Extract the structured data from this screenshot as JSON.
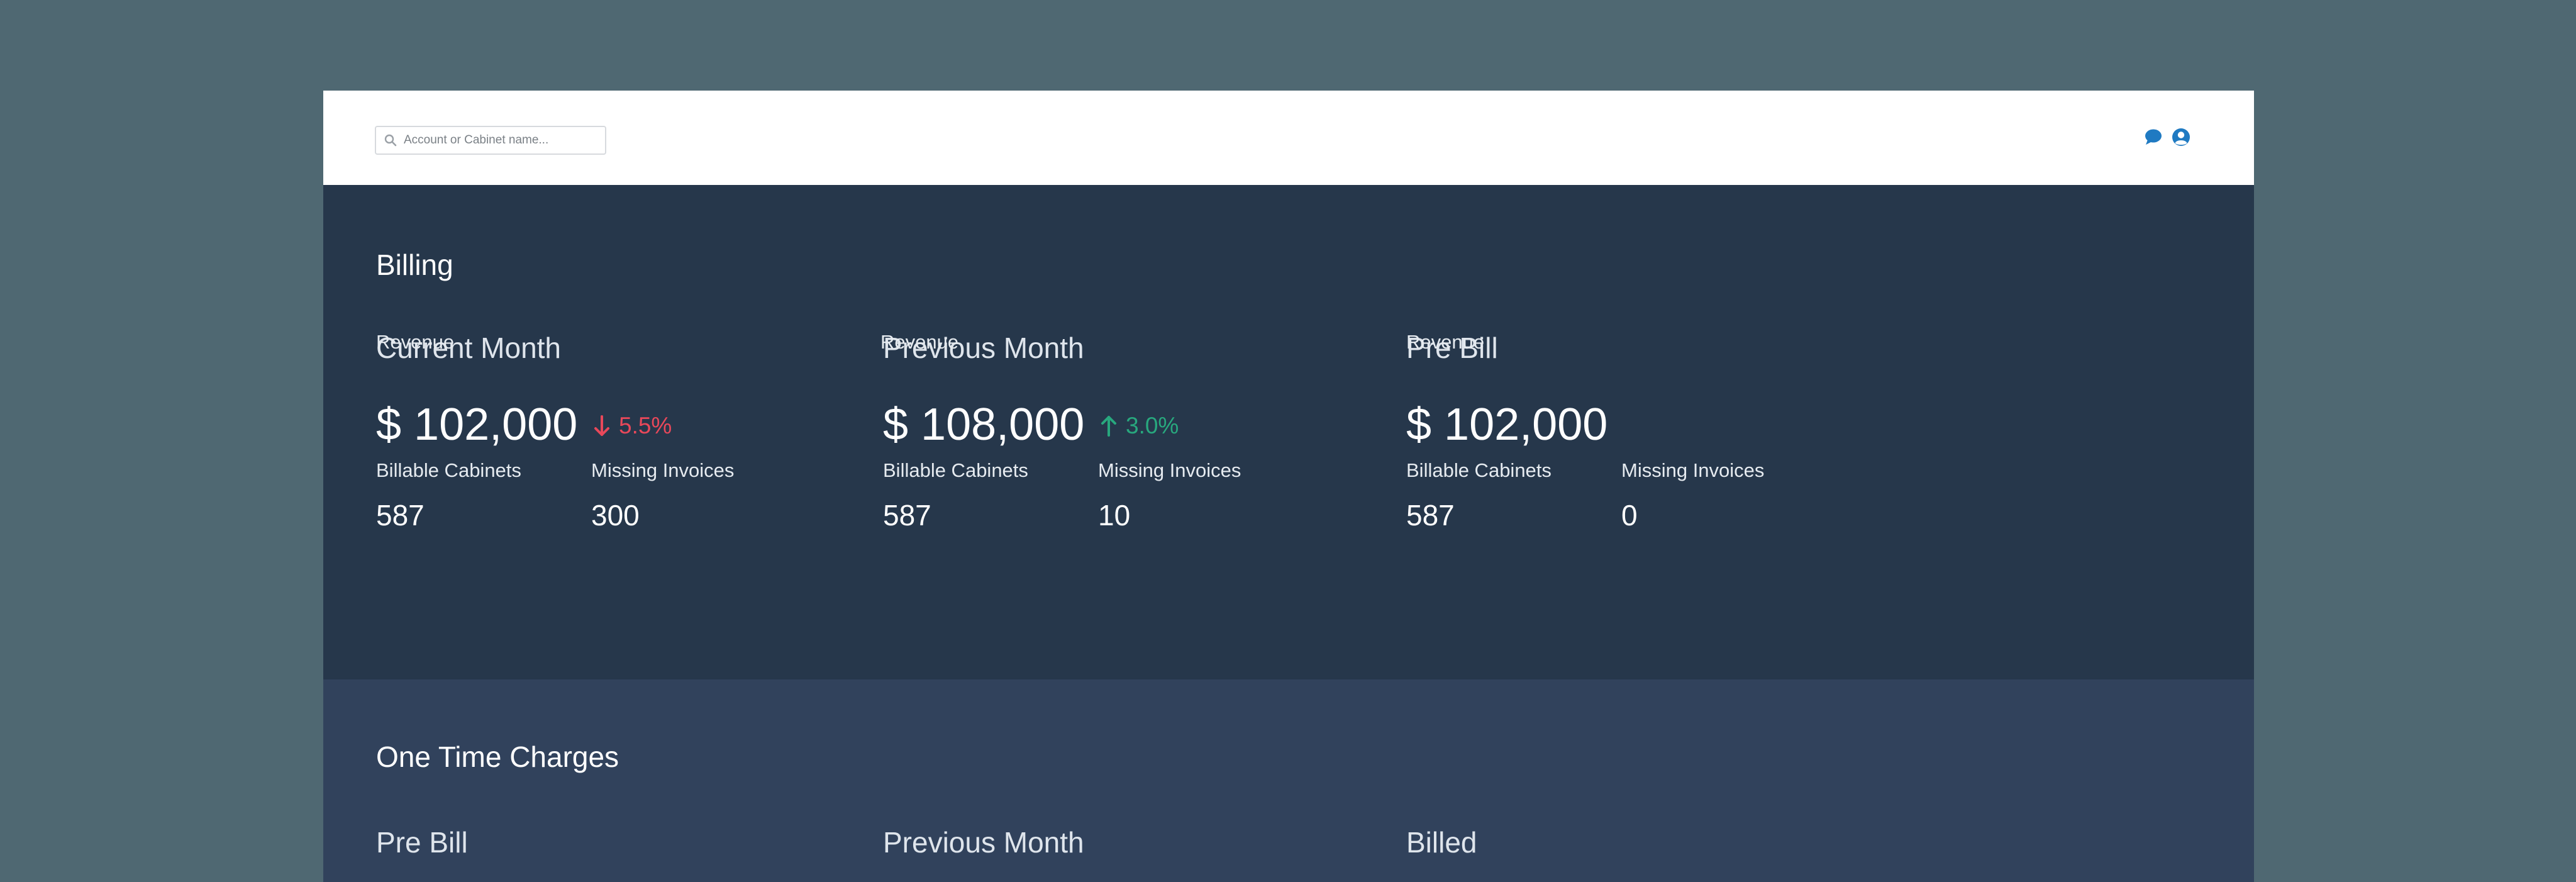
{
  "search": {
    "placeholder": "Account or Cabinet name...",
    "icon": "search-icon"
  },
  "header_icons": {
    "chat_icon": "chat-icon",
    "user_icon": "user-account-icon",
    "accent": "#1f7ac2"
  },
  "billing": {
    "title": "Billing",
    "columns": [
      {
        "title": "Current Month",
        "revenue_label": "Revenue",
        "revenue": "$ 102,000",
        "change": "5.5%",
        "change_direction": "down",
        "cabinets_label": "Billable Cabinets",
        "cabinets": "587",
        "missing_label": "Missing Invoices",
        "missing": "300"
      },
      {
        "title": "Previous Month",
        "revenue_label": "Revenue",
        "revenue": "$ 108,000",
        "change": "3.0%",
        "change_direction": "up",
        "cabinets_label": "Billable Cabinets",
        "cabinets": "587",
        "missing_label": "Missing Invoices",
        "missing": "10"
      },
      {
        "title": "Pre Bill",
        "revenue_label": "Revenue",
        "revenue": "$ 102,000",
        "cabinets_label": "Billable Cabinets",
        "cabinets": "587",
        "missing_label": "Missing Invoices",
        "missing": "0"
      }
    ]
  },
  "one_time_charges": {
    "title": "One Time Charges",
    "columns": [
      {
        "title": "Pre Bill"
      },
      {
        "title": "Previous Month"
      },
      {
        "title": "Billed"
      }
    ]
  },
  "colors": {
    "page_bg": "#4f6872",
    "billing_bg": "#26374b",
    "otc_bg": "#31425c",
    "down": "#e8485a",
    "up": "#28a87e"
  }
}
